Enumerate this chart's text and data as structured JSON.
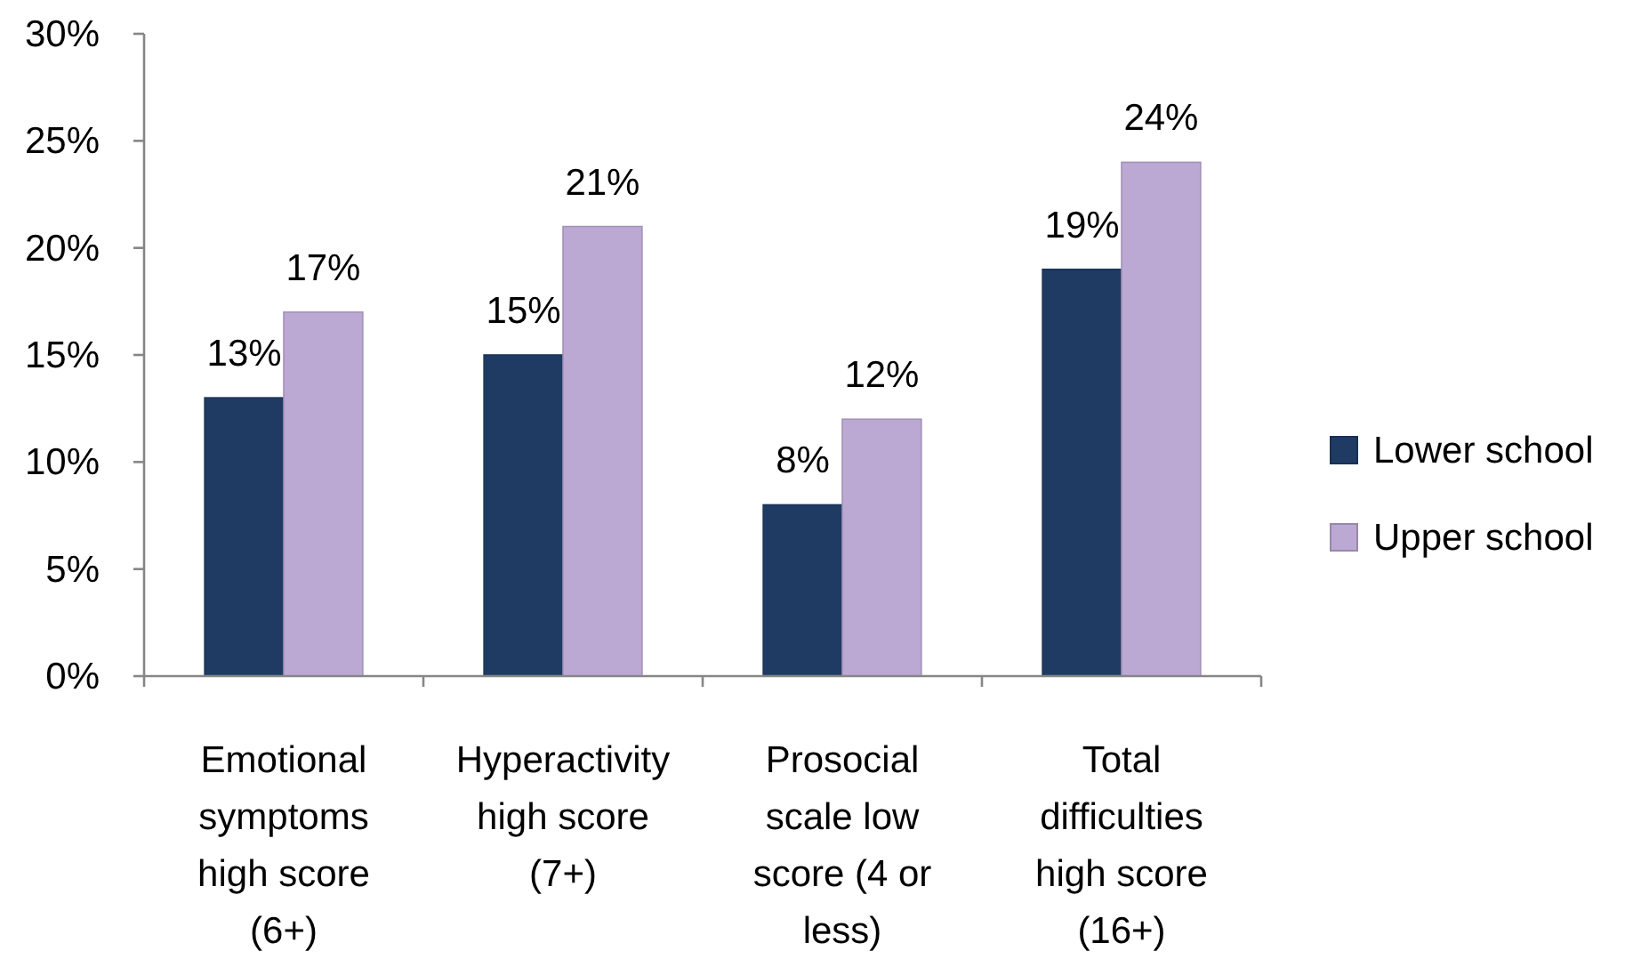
{
  "chart_data": {
    "type": "bar",
    "categories": [
      "Emotional symptoms high score (6+)",
      "Hyperactivity high score (7+)",
      "Prosocial scale low score (4 or less)",
      "Total difficulties high score (16+)"
    ],
    "series": [
      {
        "name": "Lower school",
        "color": "#1f3b64",
        "values": [
          13,
          15,
          8,
          19
        ],
        "value_labels": [
          "13%",
          "15%",
          "8%",
          "19%"
        ]
      },
      {
        "name": "Upper school",
        "color": "#bba8d3",
        "values": [
          17,
          21,
          12,
          24
        ],
        "value_labels": [
          "17%",
          "21%",
          "12%",
          "24%"
        ]
      }
    ],
    "ylim": [
      0,
      30
    ],
    "yticks": [
      {
        "value": 0,
        "label": "0%"
      },
      {
        "value": 5,
        "label": "5%"
      },
      {
        "value": 10,
        "label": "10%"
      },
      {
        "value": 15,
        "label": "15%"
      },
      {
        "value": 20,
        "label": "20%"
      },
      {
        "value": 25,
        "label": "25%"
      },
      {
        "value": 30,
        "label": "30%"
      }
    ],
    "legend": "right"
  }
}
